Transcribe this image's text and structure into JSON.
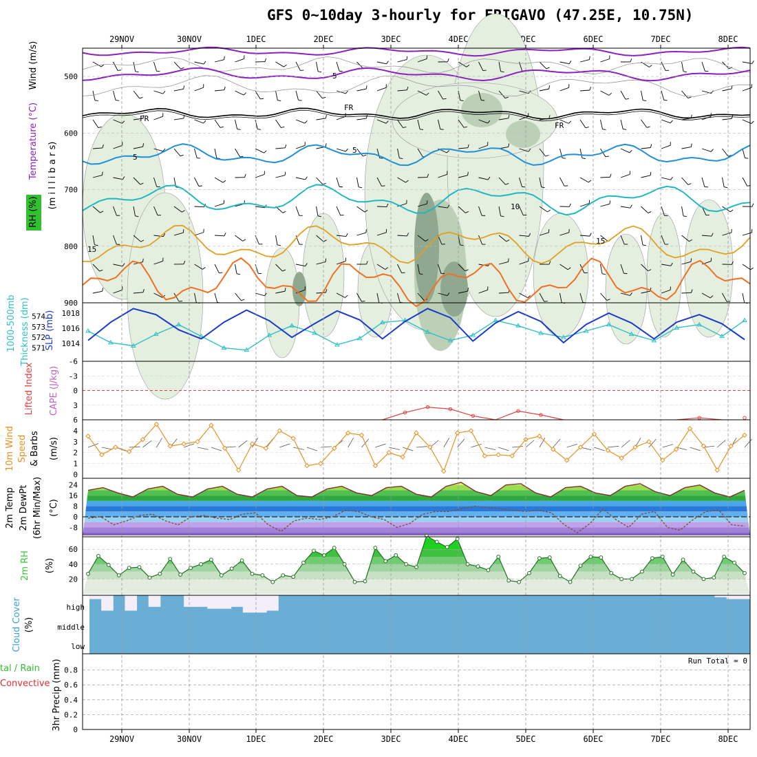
{
  "title": "GFS 0~10day 3-hourly for ERIGAVO (47.25E, 10.75N)",
  "dates": [
    "29NOV",
    "30NOV",
    "1DEC",
    "2DEC",
    "3DEC",
    "4DEC",
    "5DEC",
    "6DEC",
    "7DEC",
    "8DEC"
  ],
  "colors": {
    "wind_barb": "#000000",
    "temp_purple": "#8a20c0",
    "temp_blue": "#1e8fd8",
    "temp_teal": "#20b8c0",
    "temp_gold": "#e0a020",
    "temp_orange": "#f07020",
    "freezing": "#000000",
    "rh_light": "#e4efe0",
    "rh_mid": "#bcd0b8",
    "rh_dark": "#90a890",
    "slp": "#1a3ac8",
    "thickness": "#30c0c8",
    "lifted_index": "#e04040",
    "wind10": "#e89020",
    "cloud": "#6aaed6",
    "rh2m": "#38c838"
  },
  "panels": {
    "upper": {
      "labels": [
        "Wind (m/s)",
        "Temperature (°C)",
        "RH (%)",
        "(m i l l i b a r s)"
      ],
      "yticks": [
        "500",
        "600",
        "700",
        "800",
        "900"
      ],
      "contour_labels": [
        "5",
        "10",
        "15",
        "FR"
      ]
    },
    "slp": {
      "labels": [
        "1000-500mb",
        "Thickness (dm)",
        "SLP (mb)"
      ],
      "thickness_ticks": [
        "574",
        "573",
        "572",
        "571"
      ],
      "slp_ticks": [
        "1018",
        "1016",
        "1014"
      ]
    },
    "li": {
      "labels": [
        "Lifted Index",
        "CAPE (J/kg)"
      ],
      "yticks": [
        "-6",
        "-3",
        "0",
        "3",
        "6"
      ]
    },
    "wind10": {
      "labels": [
        "10m Wind",
        "Speed",
        "& Barbs",
        "(m/s)"
      ],
      "yticks": [
        "4",
        "3",
        "2",
        "1",
        "0"
      ]
    },
    "temp2m": {
      "labels": [
        "2m Temp",
        "2m DewPt",
        "(6hr Min/Max)",
        "(°C)"
      ],
      "yticks": [
        "24",
        "16",
        "8",
        "0",
        "-8"
      ]
    },
    "rh2m": {
      "labels": [
        "2m RH",
        "(%)"
      ],
      "yticks": [
        "60",
        "40",
        "20"
      ]
    },
    "cloud": {
      "labels": [
        "Cloud Cover",
        "(%)"
      ],
      "levels": [
        "high",
        "middle",
        "low"
      ]
    },
    "precip": {
      "labels": [
        "tal / Rain",
        "Convective",
        "3hr Precip (mm)"
      ],
      "yticks": [
        "0.8",
        "0.6",
        "0.4",
        "0.2",
        "0"
      ],
      "run_total": "Run Total = 0"
    }
  },
  "chart_data": [
    {
      "type": "line",
      "panel": "Sea level pressure and 1000-500mb thickness",
      "series": [
        {
          "name": "SLP (mb)",
          "values": [
            1014.4,
            1016.8,
            1018.6,
            1017.8,
            1015.8,
            1014.6,
            1016.8,
            1018.4,
            1017.0,
            1014.8,
            1016.6,
            1018.3,
            1017.1,
            1014.6,
            1016.9,
            1018.6,
            1017.4,
            1014.3,
            1016.7,
            1018.2,
            1016.9,
            1014.1,
            1016.5,
            1018.0,
            1016.7,
            1014.6,
            1016.8,
            1017.8,
            1016.6,
            1014.5
          ]
        },
        {
          "name": "1000-500mb Thickness (dm)",
          "values": [
            572.6,
            571.5,
            571.2,
            572.3,
            573.2,
            572.1,
            571.0,
            570.8,
            572.2,
            573.1,
            572.4,
            571.3,
            571.9,
            573.4,
            573.6,
            572.5,
            571.7,
            572.2,
            573.6,
            573.1,
            572.4,
            572.0,
            572.6,
            573.2,
            572.3,
            571.7,
            572.9,
            573.2,
            572.1,
            573.6
          ]
        }
      ]
    },
    {
      "type": "line",
      "panel": "Lifted Index",
      "series": [
        {
          "name": "Lifted Index",
          "values": [
            6,
            6,
            6,
            6,
            6,
            6,
            6,
            6,
            6,
            6,
            6,
            6,
            6,
            6,
            4.5,
            3.4,
            3.8,
            5.2,
            6,
            4.2,
            5.0,
            6,
            6,
            6,
            6,
            6,
            6,
            5.6,
            6,
            5.6
          ]
        }
      ],
      "ylim": [
        6,
        -6
      ]
    },
    {
      "type": "line",
      "panel": "10m Wind Speed",
      "series": [
        {
          "name": "10m Wind Speed (m/s)",
          "values": [
            3.5,
            1.8,
            2.5,
            2.1,
            3.2,
            4.6,
            2.6,
            2.8,
            3.0,
            4.5,
            2.4,
            0.4,
            2.8,
            2.4,
            4.0,
            3.3,
            0.8,
            1.0,
            2.4,
            3.8,
            3.6,
            0.8,
            2.0,
            1.6,
            3.8,
            2.5,
            0.3,
            3.8,
            4.0,
            1.7,
            1.8,
            1.7,
            3.2,
            3.5,
            2.3,
            1.3,
            2.5,
            3.7,
            2.2,
            1.5,
            2.5,
            3.0,
            1.3,
            2.3,
            4.2,
            2.6,
            0.4,
            2.6,
            3.6
          ]
        }
      ],
      "ylim": [
        0,
        4.5
      ]
    },
    {
      "type": "line",
      "panel": "2m Temperature and Dew Point",
      "series": [
        {
          "name": "2m Temp (°C)",
          "values": [
            20,
            22,
            18,
            15,
            21,
            23,
            17,
            15,
            21,
            23,
            17,
            15,
            21,
            23,
            16,
            15,
            21,
            23,
            18,
            16,
            22,
            23,
            17,
            15,
            23,
            26,
            19,
            16,
            24,
            25,
            18,
            15,
            22,
            23,
            18,
            16,
            23,
            25,
            19,
            16,
            22,
            24,
            18,
            15,
            20
          ]
        },
        {
          "name": "2m DewPt (°C)",
          "values": [
            -1,
            0,
            -6,
            -3,
            1,
            2,
            -3,
            -6,
            0,
            1,
            -1,
            -2,
            2,
            3,
            -6,
            -11,
            -3,
            -1,
            -2,
            0,
            5,
            4,
            0,
            -2,
            -8,
            -5,
            2,
            4,
            4,
            6,
            8,
            7,
            6,
            5,
            4,
            5,
            3,
            -6,
            -12,
            -5,
            6,
            -2,
            -8,
            2,
            4,
            -8,
            -10,
            -2,
            4,
            5,
            -6,
            -7
          ]
        }
      ],
      "ylim": [
        -14,
        28
      ]
    },
    {
      "type": "line",
      "panel": "2m RH",
      "series": [
        {
          "name": "2m RH (%)",
          "values": [
            27,
            51,
            39,
            25,
            35,
            36,
            22,
            27,
            47,
            26,
            35,
            40,
            46,
            25,
            34,
            45,
            27,
            25,
            16,
            25,
            23,
            42,
            58,
            52,
            62,
            40,
            16,
            17,
            62,
            44,
            52,
            40,
            36,
            78,
            70,
            63,
            74,
            40,
            37,
            32,
            50,
            18,
            16,
            28,
            48,
            49,
            24,
            16,
            38,
            50,
            49,
            28,
            20,
            20,
            30,
            48,
            50,
            26,
            46,
            30,
            20,
            22,
            50,
            42,
            28
          ]
        }
      ],
      "ylim": [
        0,
        75
      ]
    },
    {
      "type": "bar",
      "panel": "Cloud Cover high level (%)",
      "series": [
        {
          "name": "high cloud clear fraction",
          "values": [
            0.2,
            0.8,
            0,
            0.8,
            0,
            0.6,
            0,
            0,
            0.6,
            0.6,
            0.7,
            0.7,
            0.6,
            0.9,
            0.9,
            0.8,
            0,
            0,
            0,
            0,
            0,
            0,
            0,
            0,
            0,
            0,
            0,
            0,
            0,
            0,
            0,
            0,
            0,
            0,
            0,
            0,
            0,
            0,
            0,
            0,
            0,
            0,
            0,
            0,
            0,
            0,
            0,
            0,
            0,
            0,
            0,
            0,
            0,
            0.1,
            0.2,
            0.2
          ]
        }
      ]
    },
    {
      "type": "bar",
      "panel": "3hr Precip (mm)",
      "series": [
        {
          "name": "3hr Precip (mm)",
          "values": [
            0,
            0,
            0,
            0,
            0,
            0,
            0,
            0,
            0,
            0
          ]
        }
      ],
      "ylim": [
        0,
        1
      ]
    }
  ]
}
